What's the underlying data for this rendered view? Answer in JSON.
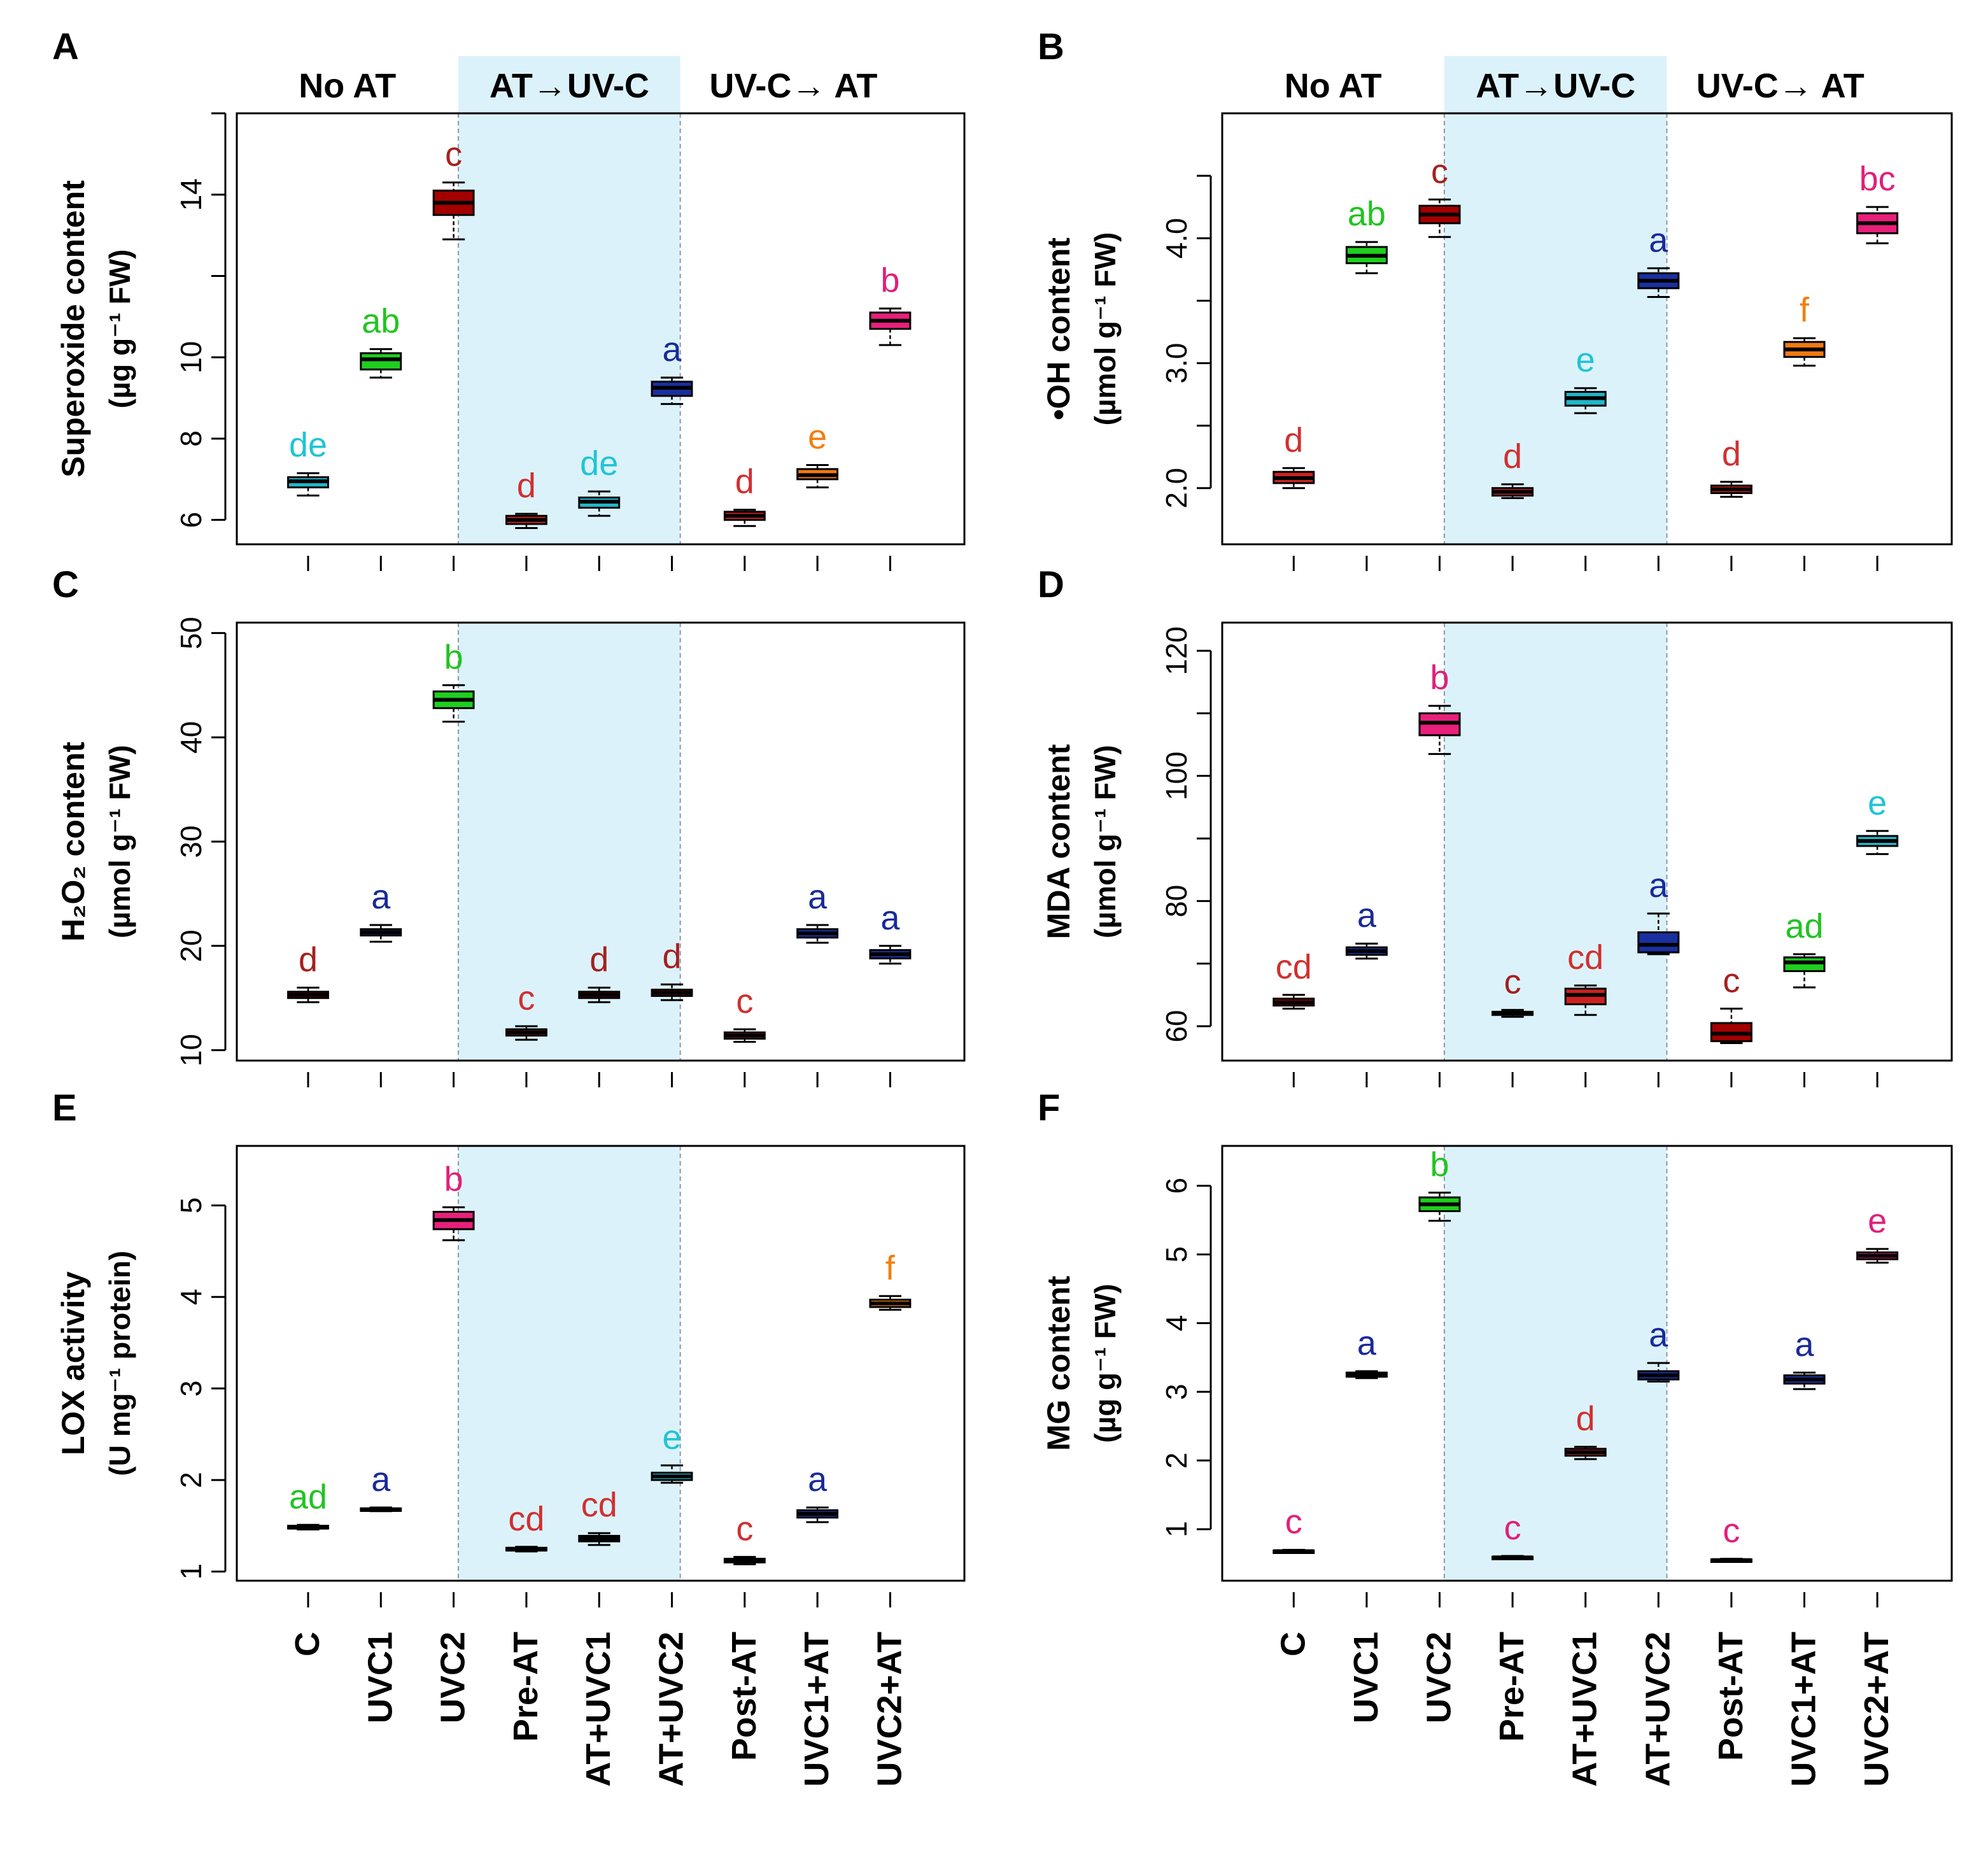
{
  "figure": {
    "group_labels": [
      "No AT",
      "AT→UV-C",
      "UV-C→ AT"
    ],
    "shade_color": "#dcf2fa",
    "x_categories": [
      "C",
      "UVC1",
      "UVC2",
      "Pre-AT",
      "AT+UVC1",
      "AT+UVC2",
      "Post-AT",
      "UVC1+AT",
      "UVC2+AT"
    ]
  },
  "chart_data": [
    {
      "id": "A",
      "type": "box",
      "panel_letter": "A",
      "ylabel_line1": "Superoxide  content",
      "ylabel_line2": "(µg g⁻¹ FW)",
      "ylim": [
        5.4,
        16.0
      ],
      "ticks": [
        6,
        8,
        10,
        14
      ],
      "tick_labels": [
        "6",
        "8",
        "10",
        "14"
      ],
      "tick_marks": [
        6,
        8,
        10,
        12,
        14,
        16
      ],
      "categories": [
        "C",
        "UVC1",
        "UVC2",
        "Pre-AT",
        "AT+UVC1",
        "AT+UVC2",
        "Post-AT",
        "UVC1+AT",
        "UVC2+AT"
      ],
      "boxes": [
        {
          "min": 6.6,
          "q1": 6.8,
          "median": 6.95,
          "q3": 7.05,
          "max": 7.15,
          "color": "#23b5c9",
          "letter": "de",
          "letter_color": "#1fc4d6"
        },
        {
          "min": 9.5,
          "q1": 9.7,
          "median": 9.95,
          "q3": 10.1,
          "max": 10.2,
          "color": "#1fcf1f",
          "letter": "ab",
          "letter_color": "#22c422"
        },
        {
          "min": 12.9,
          "q1": 13.5,
          "median": 13.8,
          "q3": 14.1,
          "max": 14.3,
          "color": "#a30000",
          "letter": "c",
          "letter_color": "#a52020"
        },
        {
          "min": 5.8,
          "q1": 5.9,
          "median": 6.0,
          "q3": 6.1,
          "max": 6.15,
          "color": "#cc2222",
          "letter": "d",
          "letter_color": "#d03030"
        },
        {
          "min": 6.1,
          "q1": 6.3,
          "median": 6.45,
          "q3": 6.55,
          "max": 6.7,
          "color": "#23b5c9",
          "letter": "de",
          "letter_color": "#1fc4d6"
        },
        {
          "min": 8.85,
          "q1": 9.05,
          "median": 9.25,
          "q3": 9.4,
          "max": 9.5,
          "color": "#1a2fa0",
          "letter": "a",
          "letter_color": "#1a2a9a"
        },
        {
          "min": 5.85,
          "q1": 6.0,
          "median": 6.1,
          "q3": 6.2,
          "max": 6.25,
          "color": "#cc2222",
          "letter": "d",
          "letter_color": "#d03030"
        },
        {
          "min": 6.8,
          "q1": 7.0,
          "median": 7.1,
          "q3": 7.25,
          "max": 7.35,
          "color": "#f07a10",
          "letter": "e",
          "letter_color": "#f08010"
        },
        {
          "min": 10.3,
          "q1": 10.7,
          "median": 10.9,
          "q3": 11.1,
          "max": 11.2,
          "color": "#e8207a",
          "letter": "b",
          "letter_color": "#e0207a"
        }
      ]
    },
    {
      "id": "B",
      "type": "box",
      "panel_letter": "B",
      "ylabel_line1": "•OH content",
      "ylabel_line2": "(µmol g⁻¹ FW)",
      "ylim": [
        1.55,
        5.0
      ],
      "ticks": [
        2.0,
        3.0,
        4.0
      ],
      "tick_labels": [
        "2.0",
        "3.0",
        "4.0"
      ],
      "tick_marks": [
        2.0,
        2.5,
        3.0,
        3.5,
        4.0,
        4.5
      ],
      "categories": [
        "C",
        "UVC1",
        "UVC2",
        "Pre-AT",
        "AT+UVC1",
        "AT+UVC2",
        "Post-AT",
        "UVC1+AT",
        "UVC2+AT"
      ],
      "boxes": [
        {
          "min": 2.0,
          "q1": 2.04,
          "median": 2.08,
          "q3": 2.13,
          "max": 2.16,
          "color": "#cc2222",
          "letter": "d",
          "letter_color": "#d03030"
        },
        {
          "min": 3.72,
          "q1": 3.8,
          "median": 3.86,
          "q3": 3.93,
          "max": 3.97,
          "color": "#1fcf1f",
          "letter": "ab",
          "letter_color": "#22c422"
        },
        {
          "min": 4.01,
          "q1": 4.12,
          "median": 4.19,
          "q3": 4.26,
          "max": 4.31,
          "color": "#a30000",
          "letter": "c",
          "letter_color": "#a52020"
        },
        {
          "min": 1.92,
          "q1": 1.94,
          "median": 1.97,
          "q3": 2.0,
          "max": 2.03,
          "color": "#cc2222",
          "letter": "d",
          "letter_color": "#d03030"
        },
        {
          "min": 2.6,
          "q1": 2.66,
          "median": 2.72,
          "q3": 2.77,
          "max": 2.8,
          "color": "#23b5c9",
          "letter": "e",
          "letter_color": "#1fc4d6"
        },
        {
          "min": 3.53,
          "q1": 3.6,
          "median": 3.66,
          "q3": 3.72,
          "max": 3.76,
          "color": "#1a2fa0",
          "letter": "a",
          "letter_color": "#1a2a9a"
        },
        {
          "min": 1.93,
          "q1": 1.96,
          "median": 1.99,
          "q3": 2.02,
          "max": 2.05,
          "color": "#cc2222",
          "letter": "d",
          "letter_color": "#d03030"
        },
        {
          "min": 2.98,
          "q1": 3.05,
          "median": 3.11,
          "q3": 3.17,
          "max": 3.2,
          "color": "#f07a10",
          "letter": "f",
          "letter_color": "#f08010"
        },
        {
          "min": 3.96,
          "q1": 4.04,
          "median": 4.12,
          "q3": 4.2,
          "max": 4.25,
          "color": "#e8207a",
          "letter": "bc",
          "letter_color": "#e0207a"
        }
      ]
    },
    {
      "id": "C",
      "type": "box",
      "panel_letter": "C",
      "ylabel_line1": "H₂O₂ content",
      "ylabel_line2": "(µmol g⁻¹ FW)",
      "ylim": [
        9,
        51
      ],
      "ticks": [
        10,
        20,
        30,
        40,
        50
      ],
      "tick_labels": [
        "10",
        "20",
        "30",
        "40",
        "50"
      ],
      "tick_marks": [
        10,
        20,
        30,
        40,
        50
      ],
      "categories": [
        "C",
        "UVC1",
        "UVC2",
        "Pre-AT",
        "AT+UVC1",
        "AT+UVC2",
        "Post-AT",
        "UVC1+AT",
        "UVC2+AT"
      ],
      "boxes": [
        {
          "min": 14.6,
          "q1": 15.0,
          "median": 15.3,
          "q3": 15.6,
          "max": 16.0,
          "color": "#a30000",
          "letter": "d",
          "letter_color": "#a52020"
        },
        {
          "min": 20.4,
          "q1": 21.0,
          "median": 21.3,
          "q3": 21.6,
          "max": 22.0,
          "color": "#1a2fa0",
          "letter": "a",
          "letter_color": "#1a2a9a"
        },
        {
          "min": 41.5,
          "q1": 42.8,
          "median": 43.6,
          "q3": 44.4,
          "max": 45.0,
          "color": "#1fcf1f",
          "letter": "b",
          "letter_color": "#22c422"
        },
        {
          "min": 11.0,
          "q1": 11.4,
          "median": 11.7,
          "q3": 12.0,
          "max": 12.3,
          "color": "#cc2222",
          "letter": "c",
          "letter_color": "#d03030"
        },
        {
          "min": 14.6,
          "q1": 15.0,
          "median": 15.3,
          "q3": 15.6,
          "max": 16.0,
          "color": "#a30000",
          "letter": "d",
          "letter_color": "#a52020"
        },
        {
          "min": 14.8,
          "q1": 15.2,
          "median": 15.5,
          "q3": 15.8,
          "max": 16.3,
          "color": "#a30000",
          "letter": "d",
          "letter_color": "#a52020"
        },
        {
          "min": 10.8,
          "q1": 11.1,
          "median": 11.4,
          "q3": 11.7,
          "max": 12.0,
          "color": "#cc2222",
          "letter": "c",
          "letter_color": "#d03030"
        },
        {
          "min": 20.3,
          "q1": 20.8,
          "median": 21.2,
          "q3": 21.6,
          "max": 22.0,
          "color": "#1a2fa0",
          "letter": "a",
          "letter_color": "#1a2a9a"
        },
        {
          "min": 18.3,
          "q1": 18.8,
          "median": 19.2,
          "q3": 19.6,
          "max": 20.0,
          "color": "#1a2fa0",
          "letter": "a",
          "letter_color": "#1a2a9a"
        }
      ]
    },
    {
      "id": "D",
      "type": "box",
      "panel_letter": "D",
      "ylabel_line1": "MDA content",
      "ylabel_line2": "(µmol g⁻¹ FW)",
      "ylim": [
        54.5,
        124.5
      ],
      "ticks": [
        60,
        80,
        100,
        120
      ],
      "tick_labels": [
        "60",
        "80",
        "100",
        "120"
      ],
      "tick_marks": [
        60,
        70,
        80,
        90,
        100,
        110,
        120
      ],
      "categories": [
        "C",
        "UVC1",
        "UVC2",
        "Pre-AT",
        "AT+UVC1",
        "AT+UVC2",
        "Post-AT",
        "UVC1+AT",
        "UVC2+AT"
      ],
      "boxes": [
        {
          "min": 62.8,
          "q1": 63.3,
          "median": 63.8,
          "q3": 64.4,
          "max": 65.0,
          "color": "#a30000",
          "letter": "cd",
          "letter_color": "#d03030"
        },
        {
          "min": 70.8,
          "q1": 71.4,
          "median": 72.0,
          "q3": 72.6,
          "max": 73.2,
          "color": "#1a2fa0",
          "letter": "a",
          "letter_color": "#1a2a9a"
        },
        {
          "min": 103.5,
          "q1": 106.5,
          "median": 108.5,
          "q3": 110.0,
          "max": 111.2,
          "color": "#e8207a",
          "letter": "b",
          "letter_color": "#e0207a"
        },
        {
          "min": 61.5,
          "q1": 61.8,
          "median": 62.0,
          "q3": 62.3,
          "max": 62.6,
          "color": "#a30000",
          "letter": "c",
          "letter_color": "#a52020"
        },
        {
          "min": 61.8,
          "q1": 63.5,
          "median": 65.0,
          "q3": 66.0,
          "max": 66.5,
          "color": "#cc2222",
          "letter": "cd",
          "letter_color": "#d03030"
        },
        {
          "min": 71.5,
          "q1": 71.8,
          "median": 73.0,
          "q3": 75.0,
          "max": 78.0,
          "color": "#1a2fa0",
          "letter": "a",
          "letter_color": "#1a2a9a"
        },
        {
          "min": 57.3,
          "q1": 57.6,
          "median": 58.8,
          "q3": 60.5,
          "max": 62.8,
          "color": "#a30000",
          "letter": "c",
          "letter_color": "#a52020"
        },
        {
          "min": 66.2,
          "q1": 68.8,
          "median": 70.2,
          "q3": 71.0,
          "max": 71.5,
          "color": "#1fcf1f",
          "letter": "ad",
          "letter_color": "#22c422"
        },
        {
          "min": 87.5,
          "q1": 88.8,
          "median": 89.6,
          "q3": 90.4,
          "max": 91.2,
          "color": "#23b5c9",
          "letter": "e",
          "letter_color": "#1fc4d6"
        }
      ]
    },
    {
      "id": "E",
      "type": "box",
      "panel_letter": "E",
      "ylabel_line1": "LOX activity",
      "ylabel_line2": "(U mg⁻¹ protein)",
      "ylim": [
        0.9,
        5.65
      ],
      "ticks": [
        1,
        2,
        3,
        4,
        5
      ],
      "tick_labels": [
        "1",
        "2",
        "3",
        "4",
        "5"
      ],
      "tick_marks": [
        1,
        2,
        3,
        4,
        5
      ],
      "categories": [
        "C",
        "UVC1",
        "UVC2",
        "Pre-AT",
        "AT+UVC1",
        "AT+UVC2",
        "Post-AT",
        "UVC1+AT",
        "UVC2+AT"
      ],
      "boxes": [
        {
          "min": 1.46,
          "q1": 1.47,
          "median": 1.48,
          "q3": 1.5,
          "max": 1.51,
          "color": "#1fcf1f",
          "letter": "ad",
          "letter_color": "#22c422"
        },
        {
          "min": 1.66,
          "q1": 1.67,
          "median": 1.68,
          "q3": 1.69,
          "max": 1.7,
          "color": "#1a2fa0",
          "letter": "a",
          "letter_color": "#1a2a9a"
        },
        {
          "min": 4.62,
          "q1": 4.74,
          "median": 4.84,
          "q3": 4.93,
          "max": 4.98,
          "color": "#e8207a",
          "letter": "b",
          "letter_color": "#e0207a"
        },
        {
          "min": 1.22,
          "q1": 1.23,
          "median": 1.24,
          "q3": 1.26,
          "max": 1.27,
          "color": "#cc2222",
          "letter": "cd",
          "letter_color": "#d03030"
        },
        {
          "min": 1.29,
          "q1": 1.33,
          "median": 1.36,
          "q3": 1.39,
          "max": 1.42,
          "color": "#cc2222",
          "letter": "cd",
          "letter_color": "#d03030"
        },
        {
          "min": 1.97,
          "q1": 2.0,
          "median": 2.04,
          "q3": 2.08,
          "max": 2.16,
          "color": "#23b5c9",
          "letter": "e",
          "letter_color": "#1fc4d6"
        },
        {
          "min": 1.08,
          "q1": 1.1,
          "median": 1.12,
          "q3": 1.14,
          "max": 1.16,
          "color": "#cc2222",
          "letter": "c",
          "letter_color": "#d03030"
        },
        {
          "min": 1.54,
          "q1": 1.59,
          "median": 1.63,
          "q3": 1.67,
          "max": 1.7,
          "color": "#1a2fa0",
          "letter": "a",
          "letter_color": "#1a2a9a"
        },
        {
          "min": 3.86,
          "q1": 3.89,
          "median": 3.93,
          "q3": 3.97,
          "max": 4.01,
          "color": "#f07a10",
          "letter": "f",
          "letter_color": "#f08010"
        }
      ]
    },
    {
      "id": "F",
      "type": "box",
      "panel_letter": "F",
      "ylabel_line1": "MG content",
      "ylabel_line2": "(µg g⁻¹ FW)",
      "ylim": [
        0.25,
        6.58
      ],
      "ticks": [
        1,
        2,
        3,
        4,
        5,
        6
      ],
      "tick_labels": [
        "1",
        "2",
        "3",
        "4",
        "5",
        "6"
      ],
      "tick_marks": [
        1,
        2,
        3,
        4,
        5,
        6
      ],
      "categories": [
        "C",
        "UVC1",
        "UVC2",
        "Pre-AT",
        "AT+UVC1",
        "AT+UVC2",
        "Post-AT",
        "UVC1+AT",
        "UVC2+AT"
      ],
      "boxes": [
        {
          "min": 0.66,
          "q1": 0.67,
          "median": 0.68,
          "q3": 0.69,
          "max": 0.7,
          "color": "#e8207a",
          "letter": "c",
          "letter_color": "#e0207a"
        },
        {
          "min": 3.2,
          "q1": 3.22,
          "median": 3.25,
          "q3": 3.28,
          "max": 3.3,
          "color": "#1a2fa0",
          "letter": "a",
          "letter_color": "#1a2a9a"
        },
        {
          "min": 5.49,
          "q1": 5.63,
          "median": 5.73,
          "q3": 5.83,
          "max": 5.9,
          "color": "#1fcf1f",
          "letter": "b",
          "letter_color": "#22c422"
        },
        {
          "min": 0.57,
          "q1": 0.58,
          "median": 0.59,
          "q3": 0.6,
          "max": 0.61,
          "color": "#e8207a",
          "letter": "c",
          "letter_color": "#e0207a"
        },
        {
          "min": 2.02,
          "q1": 2.07,
          "median": 2.12,
          "q3": 2.17,
          "max": 2.2,
          "color": "#cc2222",
          "letter": "d",
          "letter_color": "#d03030"
        },
        {
          "min": 3.15,
          "q1": 3.18,
          "median": 3.24,
          "q3": 3.3,
          "max": 3.42,
          "color": "#1a2fa0",
          "letter": "a",
          "letter_color": "#1a2a9a"
        },
        {
          "min": 0.53,
          "q1": 0.54,
          "median": 0.55,
          "q3": 0.56,
          "max": 0.57,
          "color": "#e8207a",
          "letter": "c",
          "letter_color": "#e0207a"
        },
        {
          "min": 3.04,
          "q1": 3.12,
          "median": 3.18,
          "q3": 3.24,
          "max": 3.28,
          "color": "#1a2fa0",
          "letter": "a",
          "letter_color": "#1a2a9a"
        },
        {
          "min": 4.88,
          "q1": 4.93,
          "median": 4.98,
          "q3": 5.03,
          "max": 5.08,
          "color": "#e8207a",
          "letter": "e",
          "letter_color": "#e0207a"
        }
      ]
    }
  ]
}
